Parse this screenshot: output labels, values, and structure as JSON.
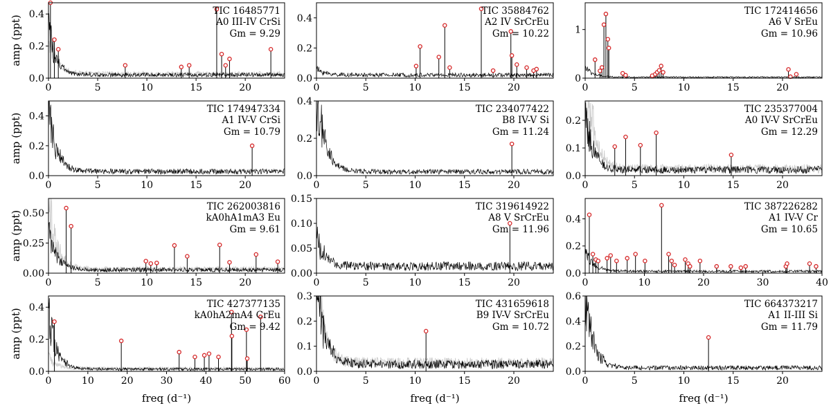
{
  "chart_data": [
    {
      "type": "line",
      "title": "",
      "tic": "TIC 16485771",
      "sptype": "A0 III-IV CrSi",
      "gm": "Gm = 9.29",
      "xlabel": "",
      "ylabel": "amp (ppt)",
      "xlim": [
        0,
        24
      ],
      "ylim": [
        0,
        0.47
      ],
      "xticks": [
        0,
        5,
        10,
        15,
        20
      ],
      "yticks": [
        0.0,
        0.2,
        0.4
      ],
      "yticklabels": [
        "0.0",
        "0.2",
        "0.4"
      ],
      "peaks": [
        [
          0.2,
          0.47
        ],
        [
          0.6,
          0.24
        ],
        [
          1.0,
          0.18
        ],
        [
          7.8,
          0.08
        ],
        [
          13.5,
          0.07
        ],
        [
          14.3,
          0.08
        ],
        [
          17.1,
          0.43
        ],
        [
          17.6,
          0.15
        ],
        [
          18.0,
          0.08
        ],
        [
          18.4,
          0.12
        ],
        [
          22.6,
          0.18
        ]
      ],
      "flagged": [
        [
          0.2,
          0.47
        ],
        [
          0.6,
          0.24
        ],
        [
          1.0,
          0.18
        ],
        [
          7.8,
          0.08
        ],
        [
          13.5,
          0.07
        ],
        [
          14.3,
          0.08
        ],
        [
          17.1,
          0.43
        ],
        [
          17.6,
          0.15
        ],
        [
          18.0,
          0.08
        ],
        [
          18.4,
          0.12
        ],
        [
          22.6,
          0.18
        ]
      ],
      "noise": 0.03,
      "lowf": 0.3,
      "gray": 0.25
    },
    {
      "type": "line",
      "title": "",
      "tic": "TIC 35884762",
      "sptype": "A2 IV SrCrEu",
      "gm": "Gm = 10.22",
      "xlabel": "",
      "ylabel": "",
      "xlim": [
        0,
        24
      ],
      "ylim": [
        0,
        0.5
      ],
      "xticks": [
        0,
        5,
        10,
        15,
        20
      ],
      "yticks": [
        0.0,
        0.2,
        0.4
      ],
      "yticklabels": [
        "0.0",
        "0.2",
        "0.4"
      ],
      "peaks": [
        [
          10.1,
          0.08
        ],
        [
          10.5,
          0.21
        ],
        [
          12.4,
          0.14
        ],
        [
          13.0,
          0.35
        ],
        [
          13.5,
          0.07
        ],
        [
          16.7,
          0.46
        ],
        [
          17.9,
          0.05
        ],
        [
          19.7,
          0.31
        ],
        [
          19.8,
          0.15
        ],
        [
          20.3,
          0.09
        ],
        [
          21.3,
          0.07
        ],
        [
          22.0,
          0.05
        ],
        [
          22.3,
          0.06
        ]
      ],
      "flagged": [
        [
          10.1,
          0.08
        ],
        [
          10.5,
          0.21
        ],
        [
          12.4,
          0.14
        ],
        [
          13.0,
          0.35
        ],
        [
          13.5,
          0.07
        ],
        [
          16.7,
          0.46
        ],
        [
          17.9,
          0.05
        ],
        [
          19.7,
          0.31
        ],
        [
          19.8,
          0.15
        ],
        [
          20.3,
          0.09
        ],
        [
          21.3,
          0.07
        ],
        [
          22.0,
          0.05
        ],
        [
          22.3,
          0.06
        ]
      ],
      "noise": 0.03,
      "lowf": 0.04,
      "gray": 0.0
    },
    {
      "type": "line",
      "title": "",
      "tic": "TIC 172414656",
      "sptype": "A6 V SrEu",
      "gm": "Gm = 10.96",
      "xlabel": "",
      "ylabel": "",
      "xlim": [
        0,
        24
      ],
      "ylim": [
        0,
        1.55
      ],
      "xticks": [
        0,
        5,
        10,
        15,
        20
      ],
      "yticks": [
        0,
        1
      ],
      "yticklabels": [
        "0",
        "1"
      ],
      "peaks": [
        [
          1.0,
          0.38
        ],
        [
          1.5,
          0.15
        ],
        [
          1.7,
          0.22
        ],
        [
          1.9,
          1.1
        ],
        [
          2.1,
          1.32
        ],
        [
          2.3,
          0.8
        ],
        [
          2.4,
          0.62
        ],
        [
          3.8,
          0.1
        ],
        [
          4.1,
          0.06
        ],
        [
          6.8,
          0.05
        ],
        [
          7.1,
          0.08
        ],
        [
          7.3,
          0.12
        ],
        [
          7.5,
          0.16
        ],
        [
          7.7,
          0.25
        ],
        [
          7.9,
          0.12
        ],
        [
          20.6,
          0.18
        ],
        [
          20.8,
          0.03
        ],
        [
          21.4,
          0.08
        ]
      ],
      "flagged": [
        [
          1.0,
          0.38
        ],
        [
          1.5,
          0.15
        ],
        [
          1.7,
          0.22
        ],
        [
          1.9,
          1.1
        ],
        [
          2.1,
          1.32
        ],
        [
          2.3,
          0.8
        ],
        [
          2.4,
          0.62
        ],
        [
          3.8,
          0.1
        ],
        [
          4.1,
          0.06
        ],
        [
          6.8,
          0.05
        ],
        [
          7.1,
          0.08
        ],
        [
          7.3,
          0.12
        ],
        [
          7.5,
          0.16
        ],
        [
          7.7,
          0.25
        ],
        [
          7.9,
          0.12
        ],
        [
          20.6,
          0.18
        ],
        [
          20.8,
          0.03
        ],
        [
          21.4,
          0.08
        ]
      ],
      "noise": 0.03,
      "lowf": 0.2,
      "gray": 0.0
    },
    {
      "type": "line",
      "title": "",
      "tic": "TIC 174947334",
      "sptype": "A1 IV-V CrSi",
      "gm": "Gm = 10.79",
      "xlabel": "",
      "ylabel": "amp (ppt)",
      "xlim": [
        0,
        24
      ],
      "ylim": [
        0,
        0.5
      ],
      "xticks": [
        0,
        5,
        10,
        15,
        20
      ],
      "yticks": [
        0.0,
        0.2,
        0.4
      ],
      "yticklabels": [
        "0.0",
        "0.2",
        "0.4"
      ],
      "peaks": [
        [
          20.7,
          0.2
        ]
      ],
      "flagged": [
        [
          20.7,
          0.2
        ]
      ],
      "noise": 0.04,
      "lowf": 0.4,
      "gray": 0.0
    },
    {
      "type": "line",
      "title": "",
      "tic": "TIC 234077422",
      "sptype": "B8 IV-V Si",
      "gm": "Gm = 11.24",
      "xlabel": "",
      "ylabel": "",
      "xlim": [
        0,
        24
      ],
      "ylim": [
        0,
        0.4
      ],
      "xticks": [
        0,
        5,
        10,
        15,
        20
      ],
      "yticks": [
        0.0,
        0.2,
        0.4
      ],
      "yticklabels": [
        "0.0",
        "0.2",
        "0.4"
      ],
      "peaks": [
        [
          19.8,
          0.17
        ]
      ],
      "flagged": [
        [
          19.8,
          0.17
        ]
      ],
      "noise": 0.03,
      "lowf": 0.45,
      "gray": 0.0
    },
    {
      "type": "line",
      "title": "",
      "tic": "TIC 235377004",
      "sptype": "A0 IV-V SrCrEu",
      "gm": "Gm = 12.29",
      "xlabel": "",
      "ylabel": "",
      "xlim": [
        0,
        24
      ],
      "ylim": [
        0,
        0.27
      ],
      "xticks": [
        0,
        5,
        10,
        15,
        20
      ],
      "yticks": [
        0.0,
        0.1,
        0.2
      ],
      "yticklabels": [
        "0.0",
        "0.1",
        "0.2"
      ],
      "peaks": [
        [
          3.0,
          0.105
        ],
        [
          4.1,
          0.14
        ],
        [
          5.6,
          0.11
        ],
        [
          7.2,
          0.155
        ],
        [
          14.8,
          0.075
        ]
      ],
      "flagged": [
        [
          3.0,
          0.105
        ],
        [
          4.1,
          0.14
        ],
        [
          5.6,
          0.11
        ],
        [
          7.2,
          0.155
        ],
        [
          14.8,
          0.075
        ]
      ],
      "noise": 0.03,
      "lowf": 0.2,
      "gray": 0.4
    },
    {
      "type": "line",
      "title": "",
      "tic": "TIC 262003816",
      "sptype": "kA0hA1mA3 Eu",
      "gm": "Gm = 9.61",
      "xlabel": "",
      "ylabel": "amp (ppt)",
      "xlim": [
        0,
        24
      ],
      "ylim": [
        0,
        0.62
      ],
      "xticks": [
        0,
        5,
        10,
        15,
        20
      ],
      "yticks": [
        0.0,
        0.25,
        0.5
      ],
      "yticklabels": [
        "0.00",
        "0.25",
        "0.50"
      ],
      "peaks": [
        [
          1.8,
          0.54
        ],
        [
          2.3,
          0.39
        ],
        [
          9.9,
          0.1
        ],
        [
          10.4,
          0.08
        ],
        [
          11.0,
          0.085
        ],
        [
          12.8,
          0.23
        ],
        [
          14.1,
          0.14
        ],
        [
          17.4,
          0.235
        ],
        [
          18.4,
          0.09
        ],
        [
          21.1,
          0.155
        ],
        [
          23.3,
          0.095
        ]
      ],
      "flagged": [
        [
          1.8,
          0.54
        ],
        [
          2.3,
          0.39
        ],
        [
          9.9,
          0.1
        ],
        [
          10.4,
          0.08
        ],
        [
          11.0,
          0.085
        ],
        [
          12.8,
          0.23
        ],
        [
          14.1,
          0.14
        ],
        [
          17.4,
          0.235
        ],
        [
          18.4,
          0.09
        ],
        [
          21.1,
          0.155
        ],
        [
          23.3,
          0.095
        ]
      ],
      "noise": 0.04,
      "lowf": 0.35,
      "gray": 0.6
    },
    {
      "type": "line",
      "title": "",
      "tic": "TIC 319614922",
      "sptype": "A8 V SrCrEu",
      "gm": "Gm = 11.96",
      "xlabel": "",
      "ylabel": "",
      "xlim": [
        0,
        24
      ],
      "ylim": [
        0,
        0.15
      ],
      "xticks": [
        0,
        5,
        10,
        15,
        20
      ],
      "yticks": [
        0.0,
        0.05,
        0.1,
        0.15
      ],
      "yticklabels": [
        "0.00",
        "0.05",
        "0.10",
        "0.15"
      ],
      "peaks": [
        [
          19.6,
          0.1
        ]
      ],
      "flagged": [
        [
          19.6,
          0.1
        ]
      ],
      "noise": 0.02,
      "lowf": 0.06,
      "gray": 0.0
    },
    {
      "type": "line",
      "title": "",
      "tic": "TIC 387226282",
      "sptype": "A1 IV-V Cr",
      "gm": "Gm = 10.65",
      "xlabel": "",
      "ylabel": "",
      "xlim": [
        0,
        40
      ],
      "ylim": [
        0,
        0.55
      ],
      "xticks": [
        0,
        10,
        20,
        30,
        40
      ],
      "yticks": [
        0.0,
        0.2,
        0.4
      ],
      "yticklabels": [
        "0.0",
        "0.2",
        "0.4"
      ],
      "peaks": [
        [
          0.7,
          0.43
        ],
        [
          1.3,
          0.14
        ],
        [
          1.8,
          0.1
        ],
        [
          2.2,
          0.09
        ],
        [
          3.7,
          0.11
        ],
        [
          4.3,
          0.13
        ],
        [
          5.3,
          0.09
        ],
        [
          7.1,
          0.11
        ],
        [
          8.5,
          0.14
        ],
        [
          10.1,
          0.09
        ],
        [
          12.9,
          0.5
        ],
        [
          14.1,
          0.14
        ],
        [
          14.6,
          0.09
        ],
        [
          15.1,
          0.06
        ],
        [
          16.9,
          0.1
        ],
        [
          17.4,
          0.07
        ],
        [
          17.7,
          0.05
        ],
        [
          19.4,
          0.09
        ],
        [
          22.2,
          0.05
        ],
        [
          24.6,
          0.05
        ],
        [
          26.3,
          0.04
        ],
        [
          27.1,
          0.05
        ],
        [
          33.9,
          0.05
        ],
        [
          34.1,
          0.07
        ],
        [
          37.9,
          0.07
        ],
        [
          39.0,
          0.05
        ]
      ],
      "flagged": [
        [
          0.7,
          0.43
        ],
        [
          1.3,
          0.14
        ],
        [
          1.8,
          0.1
        ],
        [
          2.2,
          0.09
        ],
        [
          3.7,
          0.11
        ],
        [
          4.3,
          0.13
        ],
        [
          5.3,
          0.09
        ],
        [
          7.1,
          0.11
        ],
        [
          8.5,
          0.14
        ],
        [
          10.1,
          0.09
        ],
        [
          12.9,
          0.5
        ],
        [
          14.1,
          0.14
        ],
        [
          14.6,
          0.09
        ],
        [
          15.1,
          0.06
        ],
        [
          16.9,
          0.1
        ],
        [
          17.4,
          0.07
        ],
        [
          17.7,
          0.05
        ],
        [
          19.4,
          0.09
        ],
        [
          22.2,
          0.05
        ],
        [
          24.6,
          0.05
        ],
        [
          26.3,
          0.04
        ],
        [
          27.1,
          0.05
        ],
        [
          33.9,
          0.05
        ],
        [
          34.1,
          0.07
        ],
        [
          37.9,
          0.07
        ],
        [
          39.0,
          0.05
        ]
      ],
      "noise": 0.02,
      "lowf": 0.15,
      "gray": 0.0
    },
    {
      "type": "line",
      "title": "",
      "tic": "TIC 427377135",
      "sptype": "kA0hA2mA4 CrEu",
      "gm": "Gm = 9.42",
      "xlabel": "freq (d⁻¹)",
      "ylabel": "amp (ppt)",
      "xlim": [
        0,
        60
      ],
      "ylim": [
        0,
        0.47
      ],
      "xticks": [
        0,
        10,
        20,
        30,
        40,
        50,
        60
      ],
      "yticks": [
        0.0,
        0.2,
        0.4
      ],
      "yticklabels": [
        "0.0",
        "0.2",
        "0.4"
      ],
      "peaks": [
        [
          1.5,
          0.31
        ],
        [
          18.5,
          0.19
        ],
        [
          33.2,
          0.12
        ],
        [
          37.2,
          0.09
        ],
        [
          39.6,
          0.1
        ],
        [
          40.8,
          0.11
        ],
        [
          43.2,
          0.09
        ],
        [
          46.5,
          0.37
        ],
        [
          46.6,
          0.22
        ],
        [
          50.3,
          0.26
        ],
        [
          50.5,
          0.08
        ],
        [
          53.9,
          0.34
        ]
      ],
      "flagged": [
        [
          1.5,
          0.31
        ],
        [
          18.5,
          0.19
        ],
        [
          33.2,
          0.12
        ],
        [
          37.2,
          0.09
        ],
        [
          39.6,
          0.1
        ],
        [
          40.8,
          0.11
        ],
        [
          43.2,
          0.09
        ],
        [
          46.5,
          0.37
        ],
        [
          46.6,
          0.22
        ],
        [
          50.3,
          0.26
        ],
        [
          50.5,
          0.08
        ],
        [
          53.9,
          0.34
        ]
      ],
      "noise": 0.02,
      "lowf": 0.35,
      "gray": 0.08
    },
    {
      "type": "line",
      "title": "",
      "tic": "TIC 431659618",
      "sptype": "B9 IV-V SrCrEu",
      "gm": "Gm = 10.72",
      "xlabel": "freq (d⁻¹)",
      "ylabel": "",
      "xlim": [
        0,
        24
      ],
      "ylim": [
        0,
        0.3
      ],
      "xticks": [
        0,
        5,
        10,
        15,
        20
      ],
      "yticks": [
        0.0,
        0.1,
        0.2,
        0.3
      ],
      "yticklabels": [
        "0.0",
        "0.1",
        "0.2",
        "0.3"
      ],
      "peaks": [
        [
          11.1,
          0.16
        ]
      ],
      "flagged": [
        [
          11.1,
          0.16
        ]
      ],
      "noise": 0.04,
      "lowf": 0.35,
      "gray": 0.35
    },
    {
      "type": "line",
      "title": "",
      "tic": "TIC 664373217",
      "sptype": "A1 II-III Si",
      "gm": "Gm = 11.79",
      "xlabel": "freq (d⁻¹)",
      "ylabel": "",
      "xlim": [
        0,
        24
      ],
      "ylim": [
        0,
        0.6
      ],
      "xticks": [
        0,
        5,
        10,
        15,
        20
      ],
      "yticks": [
        0.0,
        0.2,
        0.4,
        0.6
      ],
      "yticklabels": [
        "0.0",
        "0.2",
        "0.4",
        "0.6"
      ],
      "peaks": [
        [
          12.5,
          0.27
        ]
      ],
      "flagged": [
        [
          12.5,
          0.27
        ]
      ],
      "noise": 0.04,
      "lowf": 0.6,
      "gray": 0.0
    }
  ],
  "colors": {
    "line": "#000000",
    "gray_line": "#cccccc",
    "marker": "#d62728"
  }
}
